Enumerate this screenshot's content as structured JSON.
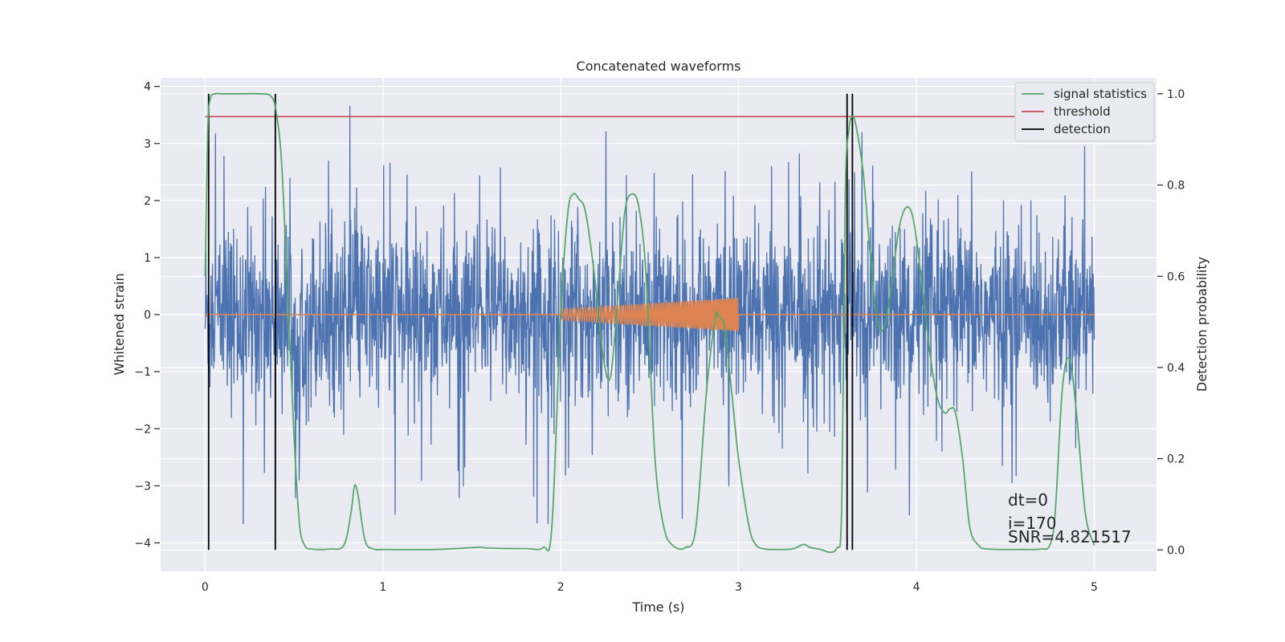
{
  "chart_data": {
    "type": "line",
    "title": "Concatenated waveforms",
    "xlabel": "Time (s)",
    "ylabel": "Whitened strain",
    "y2label": "Detection probability",
    "xlim": [
      -0.25,
      5.35
    ],
    "ylim": [
      -4.5,
      4.15
    ],
    "y2lim": [
      -0.047,
      1.035
    ],
    "xticks": [
      0,
      1,
      2,
      3,
      4,
      5
    ],
    "yticks": [
      -4,
      -3,
      -2,
      -1,
      0,
      1,
      2,
      3,
      4
    ],
    "y2ticks": [
      0.0,
      0.2,
      0.4,
      0.6,
      0.8,
      1.0
    ],
    "y2tick_labels": [
      "0.0",
      "0.2",
      "0.4",
      "0.6",
      "0.8",
      "1.0"
    ],
    "grid": true,
    "legend_position": "top-right",
    "legend": [
      {
        "label": "signal statistics",
        "color": "#55a868"
      },
      {
        "label": "threshold",
        "color": "#c44e52"
      },
      {
        "label": "detection",
        "color": "#000000"
      }
    ],
    "strain_series": {
      "color": "#4c72b0",
      "x_range": [
        0,
        5
      ],
      "typical_amplitude": 0.8,
      "peak_amplitude": 3.8
    },
    "injected_signal": {
      "color": "#dd8452",
      "x_range": [
        2.0,
        3.0
      ],
      "start_amplitude": 0.1,
      "end_amplitude": 0.3,
      "baseline_range": [
        0,
        5
      ]
    },
    "signal_statistics": {
      "axis": "right",
      "color": "#55a868",
      "x": [
        0.0,
        0.015,
        0.03,
        0.06,
        0.1,
        0.2,
        0.3,
        0.37,
        0.4,
        0.43,
        0.46,
        0.5,
        0.53,
        0.56,
        0.6,
        0.7,
        0.78,
        0.82,
        0.84,
        0.86,
        0.9,
        0.95,
        1.0,
        1.3,
        1.5,
        1.55,
        1.6,
        1.8,
        1.9,
        1.95,
        2.0,
        2.04,
        2.07,
        2.1,
        2.14,
        2.19,
        2.24,
        2.28,
        2.32,
        2.36,
        2.4,
        2.44,
        2.48,
        2.53,
        2.58,
        2.63,
        2.7,
        2.76,
        2.82,
        2.87,
        2.89,
        2.92,
        2.96,
        3.0,
        3.06,
        3.1,
        3.15,
        3.2,
        3.3,
        3.35,
        3.37,
        3.4,
        3.45,
        3.55,
        3.58,
        3.6,
        3.62,
        3.64,
        3.66,
        3.7,
        3.74,
        3.78,
        3.82,
        3.86,
        3.9,
        3.94,
        3.98,
        4.02,
        4.08,
        4.12,
        4.16,
        4.19,
        4.22,
        4.26,
        4.3,
        4.35,
        4.4,
        4.6,
        4.7,
        4.75,
        4.78,
        4.82,
        4.86,
        4.9,
        4.95,
        5.0
      ],
      "y": [
        0.6,
        0.92,
        0.99,
        1.0,
        1.0,
        1.0,
        1.0,
        0.995,
        0.96,
        0.85,
        0.6,
        0.25,
        0.06,
        0.01,
        0.002,
        0.002,
        0.01,
        0.08,
        0.14,
        0.12,
        0.02,
        0.002,
        0.001,
        0.001,
        0.005,
        0.006,
        0.004,
        0.003,
        0.005,
        0.05,
        0.52,
        0.74,
        0.78,
        0.77,
        0.74,
        0.6,
        0.42,
        0.38,
        0.55,
        0.74,
        0.78,
        0.75,
        0.6,
        0.2,
        0.05,
        0.01,
        0.005,
        0.05,
        0.35,
        0.51,
        0.51,
        0.49,
        0.35,
        0.2,
        0.05,
        0.01,
        0.002,
        0.001,
        0.002,
        0.01,
        0.012,
        0.006,
        0.002,
        0.002,
        0.1,
        0.78,
        0.92,
        0.95,
        0.93,
        0.83,
        0.65,
        0.5,
        0.49,
        0.58,
        0.7,
        0.75,
        0.73,
        0.62,
        0.42,
        0.33,
        0.3,
        0.31,
        0.3,
        0.2,
        0.05,
        0.01,
        0.002,
        0.001,
        0.002,
        0.01,
        0.08,
        0.35,
        0.42,
        0.3,
        0.08,
        0.01
      ]
    },
    "threshold": {
      "axis": "right",
      "color": "#c44e52",
      "value": 0.95,
      "x_range": [
        0,
        5
      ]
    },
    "detections": {
      "color": "#000000",
      "x": [
        0.02,
        0.395,
        3.61,
        3.64
      ],
      "y2_range": [
        0.0,
        1.0
      ]
    },
    "annotations": [
      "dt=0",
      "i=170",
      "SNR=4.821517"
    ]
  },
  "colors": {
    "axes_background": "#eaeaf2",
    "grid": "#ffffff",
    "strain": "#4c72b0",
    "injected": "#dd8452",
    "statistic": "#55a868",
    "threshold": "#c44e52",
    "detection": "#000000"
  }
}
